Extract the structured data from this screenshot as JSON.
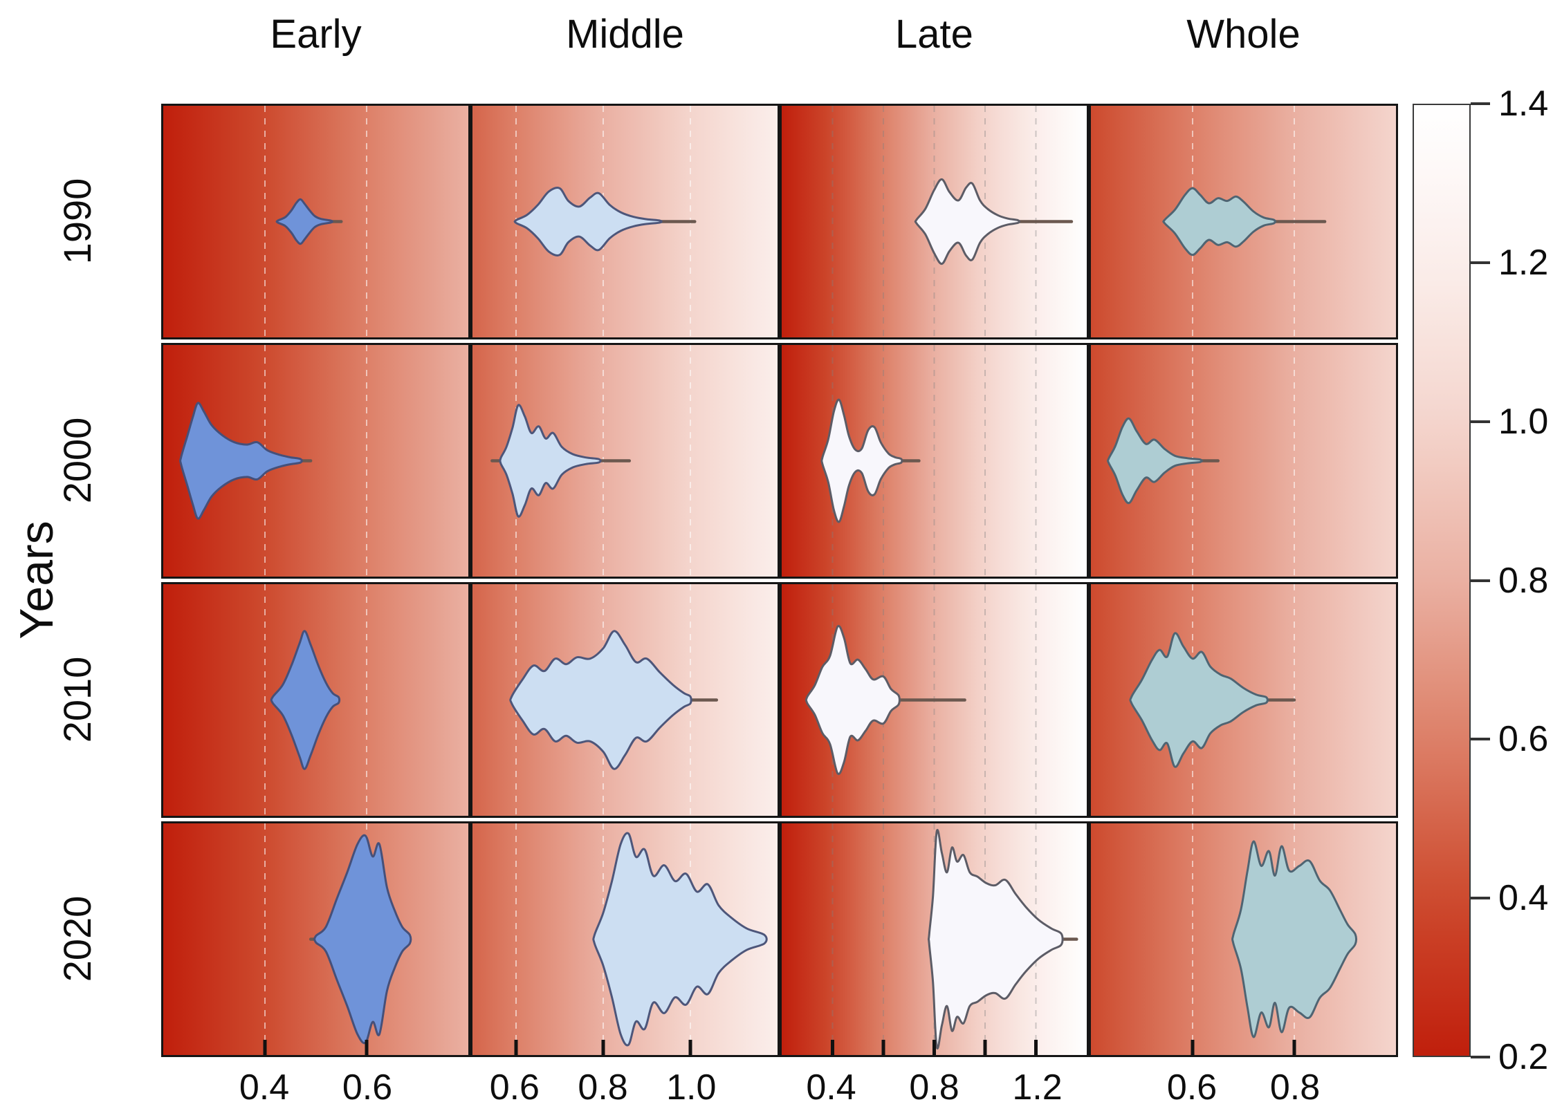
{
  "colors": {
    "background": "#ffffff",
    "panel_border": "#151515",
    "axis_text": "#111111",
    "tail_line": "#6b584f",
    "colorbar_border": "#3a3a3a"
  },
  "chart_data": {
    "type": "violin",
    "title": "",
    "xlabel": "",
    "ylabel": "Years",
    "rows": [
      "1990",
      "2000",
      "2010",
      "2020"
    ],
    "colormap": {
      "values": [
        0.2,
        0.4,
        0.6,
        0.8,
        1.0,
        1.2,
        1.4
      ],
      "colors": [
        "#c01f0c",
        "#cd4a2e",
        "#dd8068",
        "#eab0a2",
        "#f4d5cd",
        "#fbeeeb",
        "#ffffff"
      ]
    },
    "colorbar": {
      "min": 0.2,
      "max": 1.4,
      "ticks": [
        1.4,
        1.2,
        1.0,
        0.8,
        0.6,
        0.4,
        0.2
      ],
      "tick_labels": [
        "1.4",
        "1.2",
        "1.0",
        "0.8",
        "0.6",
        "0.4",
        "0.2"
      ],
      "position": "right"
    },
    "columns": [
      {
        "name": "Early",
        "x_range": [
          0.2,
          0.8
        ],
        "ticks": [
          0.4,
          0.6
        ],
        "tick_labels": [
          "0.4",
          "0.6"
        ],
        "violin_fill": "#6f93d9",
        "violin_stroke": "#45507a",
        "gridline_color": "rgba(255,255,255,0.55)"
      },
      {
        "name": "Middle",
        "x_range": [
          0.5,
          1.2
        ],
        "ticks": [
          0.6,
          0.8,
          1.0
        ],
        "tick_labels": [
          "0.6",
          "0.8",
          "1.0"
        ],
        "violin_fill": "#ccdef2",
        "violin_stroke": "#4d567a",
        "gridline_color": "rgba(255,255,255,0.55)"
      },
      {
        "name": "Late",
        "x_range": [
          0.2,
          1.4
        ],
        "ticks": [
          0.4,
          0.6,
          0.8,
          1.0,
          1.2
        ],
        "tick_labels": [
          "0.4",
          "",
          "0.8",
          "",
          "1.2"
        ],
        "violin_fill": "#f8f7fc",
        "violin_stroke": "#5c5c66",
        "gridline_color": "rgba(130,130,130,0.38)"
      },
      {
        "name": "Whole",
        "x_range": [
          0.4,
          1.0
        ],
        "ticks": [
          0.6,
          0.8
        ],
        "tick_labels": [
          "0.6",
          "0.8"
        ],
        "violin_fill": "#aecdd3",
        "violin_stroke": "#4f6472",
        "gridline_color": "rgba(255,255,255,0.55)"
      }
    ],
    "violins": [
      {
        "row": "1990",
        "col": "Early",
        "height_frac": 0.2,
        "tails": [
          [
            0.505,
            0.55
          ]
        ],
        "profile": [
          [
            0.425,
            0.04
          ],
          [
            0.44,
            0.2
          ],
          [
            0.452,
            0.5
          ],
          [
            0.462,
            0.85
          ],
          [
            0.47,
            1.0
          ],
          [
            0.478,
            0.8
          ],
          [
            0.488,
            0.5
          ],
          [
            0.498,
            0.25
          ],
          [
            0.51,
            0.12
          ],
          [
            0.53,
            0.04
          ]
        ]
      },
      {
        "row": "1990",
        "col": "Middle",
        "height_frac": 0.3,
        "tails": [
          [
            0.9,
            1.01
          ]
        ],
        "profile": [
          [
            0.6,
            0.04
          ],
          [
            0.625,
            0.2
          ],
          [
            0.65,
            0.5
          ],
          [
            0.675,
            0.9
          ],
          [
            0.7,
            1.0
          ],
          [
            0.72,
            0.62
          ],
          [
            0.745,
            0.45
          ],
          [
            0.77,
            0.72
          ],
          [
            0.79,
            0.85
          ],
          [
            0.815,
            0.5
          ],
          [
            0.84,
            0.28
          ],
          [
            0.87,
            0.14
          ],
          [
            0.9,
            0.07
          ],
          [
            0.93,
            0.03
          ]
        ]
      },
      {
        "row": "1990",
        "col": "Late",
        "height_frac": 0.38,
        "tails": [
          [
            1.1,
            1.34
          ]
        ],
        "profile": [
          [
            0.73,
            0.04
          ],
          [
            0.765,
            0.3
          ],
          [
            0.8,
            0.75
          ],
          [
            0.83,
            1.0
          ],
          [
            0.86,
            0.7
          ],
          [
            0.895,
            0.5
          ],
          [
            0.925,
            0.8
          ],
          [
            0.95,
            0.9
          ],
          [
            0.98,
            0.5
          ],
          [
            1.01,
            0.3
          ],
          [
            1.05,
            0.15
          ],
          [
            1.09,
            0.07
          ],
          [
            1.13,
            0.03
          ]
        ]
      },
      {
        "row": "1990",
        "col": "Whole",
        "height_frac": 0.3,
        "tails": [
          [
            0.74,
            0.86
          ]
        ],
        "profile": [
          [
            0.545,
            0.05
          ],
          [
            0.565,
            0.35
          ],
          [
            0.585,
            0.8
          ],
          [
            0.6,
            1.0
          ],
          [
            0.615,
            0.8
          ],
          [
            0.632,
            0.55
          ],
          [
            0.65,
            0.7
          ],
          [
            0.668,
            0.62
          ],
          [
            0.685,
            0.75
          ],
          [
            0.7,
            0.6
          ],
          [
            0.72,
            0.3
          ],
          [
            0.74,
            0.12
          ],
          [
            0.76,
            0.05
          ]
        ]
      },
      {
        "row": "2000",
        "col": "Early",
        "height_frac": 0.52,
        "tails": [
          [
            0.42,
            0.49
          ]
        ],
        "profile": [
          [
            0.235,
            0.06
          ],
          [
            0.248,
            0.45
          ],
          [
            0.258,
            0.75
          ],
          [
            0.268,
            1.0
          ],
          [
            0.28,
            0.85
          ],
          [
            0.295,
            0.62
          ],
          [
            0.315,
            0.45
          ],
          [
            0.34,
            0.32
          ],
          [
            0.365,
            0.28
          ],
          [
            0.385,
            0.32
          ],
          [
            0.405,
            0.18
          ],
          [
            0.43,
            0.1
          ],
          [
            0.45,
            0.06
          ],
          [
            0.47,
            0.03
          ]
        ]
      },
      {
        "row": "2000",
        "col": "Middle",
        "height_frac": 0.5,
        "tails": [
          [
            0.545,
            0.565
          ],
          [
            0.76,
            0.86
          ]
        ],
        "profile": [
          [
            0.565,
            0.05
          ],
          [
            0.578,
            0.25
          ],
          [
            0.592,
            0.6
          ],
          [
            0.605,
            1.0
          ],
          [
            0.62,
            0.8
          ],
          [
            0.635,
            0.5
          ],
          [
            0.652,
            0.62
          ],
          [
            0.668,
            0.4
          ],
          [
            0.685,
            0.5
          ],
          [
            0.705,
            0.25
          ],
          [
            0.73,
            0.12
          ],
          [
            0.76,
            0.06
          ],
          [
            0.79,
            0.03
          ]
        ]
      },
      {
        "row": "2000",
        "col": "Late",
        "height_frac": 0.55,
        "tails": [
          [
            0.63,
            0.74
          ]
        ],
        "profile": [
          [
            0.36,
            0.05
          ],
          [
            0.383,
            0.35
          ],
          [
            0.405,
            0.8
          ],
          [
            0.425,
            1.0
          ],
          [
            0.445,
            0.75
          ],
          [
            0.465,
            0.4
          ],
          [
            0.49,
            0.18
          ],
          [
            0.515,
            0.2
          ],
          [
            0.54,
            0.5
          ],
          [
            0.565,
            0.55
          ],
          [
            0.59,
            0.3
          ],
          [
            0.62,
            0.12
          ],
          [
            0.645,
            0.06
          ],
          [
            0.67,
            0.03
          ]
        ]
      },
      {
        "row": "2000",
        "col": "Whole",
        "height_frac": 0.38,
        "tails": [
          [
            0.57,
            0.65
          ]
        ],
        "profile": [
          [
            0.435,
            0.05
          ],
          [
            0.448,
            0.35
          ],
          [
            0.462,
            0.8
          ],
          [
            0.475,
            1.0
          ],
          [
            0.49,
            0.7
          ],
          [
            0.508,
            0.4
          ],
          [
            0.525,
            0.5
          ],
          [
            0.545,
            0.28
          ],
          [
            0.565,
            0.12
          ],
          [
            0.59,
            0.06
          ],
          [
            0.615,
            0.03
          ]
        ]
      },
      {
        "row": "2010",
        "col": "Early",
        "height_frac": 0.62,
        "tails": [],
        "profile": [
          [
            0.415,
            0.04
          ],
          [
            0.435,
            0.22
          ],
          [
            0.452,
            0.5
          ],
          [
            0.468,
            0.82
          ],
          [
            0.478,
            1.0
          ],
          [
            0.49,
            0.8
          ],
          [
            0.505,
            0.5
          ],
          [
            0.52,
            0.25
          ],
          [
            0.533,
            0.1
          ],
          [
            0.545,
            0.04
          ]
        ]
      },
      {
        "row": "2010",
        "col": "Middle",
        "height_frac": 0.62,
        "tails": [
          [
            1.0,
            1.06
          ]
        ],
        "profile": [
          [
            0.59,
            0.05
          ],
          [
            0.615,
            0.3
          ],
          [
            0.64,
            0.5
          ],
          [
            0.665,
            0.42
          ],
          [
            0.69,
            0.6
          ],
          [
            0.715,
            0.52
          ],
          [
            0.74,
            0.62
          ],
          [
            0.77,
            0.6
          ],
          [
            0.8,
            0.75
          ],
          [
            0.825,
            1.0
          ],
          [
            0.85,
            0.8
          ],
          [
            0.875,
            0.55
          ],
          [
            0.9,
            0.6
          ],
          [
            0.93,
            0.4
          ],
          [
            0.96,
            0.22
          ],
          [
            0.985,
            0.1
          ],
          [
            1.0,
            0.05
          ]
        ]
      },
      {
        "row": "2010",
        "col": "Late",
        "height_frac": 0.66,
        "tails": [
          [
            0.66,
            0.92
          ]
        ],
        "profile": [
          [
            0.3,
            0.04
          ],
          [
            0.33,
            0.2
          ],
          [
            0.36,
            0.45
          ],
          [
            0.39,
            0.6
          ],
          [
            0.42,
            1.0
          ],
          [
            0.445,
            0.85
          ],
          [
            0.47,
            0.5
          ],
          [
            0.5,
            0.55
          ],
          [
            0.53,
            0.42
          ],
          [
            0.56,
            0.28
          ],
          [
            0.6,
            0.32
          ],
          [
            0.63,
            0.15
          ],
          [
            0.66,
            0.06
          ]
        ]
      },
      {
        "row": "2010",
        "col": "Whole",
        "height_frac": 0.6,
        "tails": [
          [
            0.745,
            0.8
          ]
        ],
        "profile": [
          [
            0.48,
            0.05
          ],
          [
            0.5,
            0.3
          ],
          [
            0.52,
            0.6
          ],
          [
            0.535,
            0.75
          ],
          [
            0.55,
            0.65
          ],
          [
            0.565,
            1.0
          ],
          [
            0.582,
            0.8
          ],
          [
            0.6,
            0.62
          ],
          [
            0.618,
            0.72
          ],
          [
            0.635,
            0.5
          ],
          [
            0.655,
            0.38
          ],
          [
            0.675,
            0.32
          ],
          [
            0.7,
            0.18
          ],
          [
            0.725,
            0.08
          ],
          [
            0.745,
            0.04
          ]
        ]
      },
      {
        "row": "2020",
        "col": "Early",
        "height_frac": 0.93,
        "tails": [
          [
            0.49,
            0.505
          ]
        ],
        "profile": [
          [
            0.5,
            0.03
          ],
          [
            0.52,
            0.12
          ],
          [
            0.542,
            0.4
          ],
          [
            0.562,
            0.65
          ],
          [
            0.582,
            0.92
          ],
          [
            0.598,
            1.0
          ],
          [
            0.612,
            0.8
          ],
          [
            0.625,
            0.92
          ],
          [
            0.64,
            0.5
          ],
          [
            0.655,
            0.28
          ],
          [
            0.67,
            0.12
          ],
          [
            0.685,
            0.04
          ]
        ]
      },
      {
        "row": "2020",
        "col": "Middle",
        "height_frac": 0.95,
        "tails": [],
        "profile": [
          [
            0.78,
            0.04
          ],
          [
            0.8,
            0.25
          ],
          [
            0.82,
            0.55
          ],
          [
            0.84,
            0.9
          ],
          [
            0.858,
            1.0
          ],
          [
            0.875,
            0.78
          ],
          [
            0.895,
            0.85
          ],
          [
            0.915,
            0.6
          ],
          [
            0.94,
            0.7
          ],
          [
            0.965,
            0.55
          ],
          [
            0.99,
            0.62
          ],
          [
            1.015,
            0.45
          ],
          [
            1.04,
            0.52
          ],
          [
            1.065,
            0.32
          ],
          [
            1.095,
            0.2
          ],
          [
            1.13,
            0.1
          ],
          [
            1.17,
            0.04
          ]
        ]
      },
      {
        "row": "2020",
        "col": "Late",
        "height_frac": 0.97,
        "tails": [
          [
            1.3,
            1.36
          ]
        ],
        "profile": [
          [
            0.78,
            0.04
          ],
          [
            0.795,
            0.4
          ],
          [
            0.81,
            1.0
          ],
          [
            0.83,
            0.8
          ],
          [
            0.85,
            0.62
          ],
          [
            0.87,
            0.85
          ],
          [
            0.89,
            0.72
          ],
          [
            0.915,
            0.78
          ],
          [
            0.94,
            0.62
          ],
          [
            0.97,
            0.58
          ],
          [
            1.005,
            0.52
          ],
          [
            1.04,
            0.5
          ],
          [
            1.08,
            0.55
          ],
          [
            1.12,
            0.42
          ],
          [
            1.16,
            0.3
          ],
          [
            1.21,
            0.18
          ],
          [
            1.26,
            0.1
          ],
          [
            1.3,
            0.05
          ]
        ]
      },
      {
        "row": "2020",
        "col": "Whole",
        "height_frac": 0.88,
        "tails": [],
        "profile": [
          [
            0.68,
            0.04
          ],
          [
            0.695,
            0.3
          ],
          [
            0.708,
            0.7
          ],
          [
            0.72,
            1.0
          ],
          [
            0.735,
            0.75
          ],
          [
            0.75,
            0.9
          ],
          [
            0.762,
            0.65
          ],
          [
            0.775,
            0.95
          ],
          [
            0.79,
            0.7
          ],
          [
            0.81,
            0.75
          ],
          [
            0.83,
            0.8
          ],
          [
            0.85,
            0.6
          ],
          [
            0.87,
            0.5
          ],
          [
            0.89,
            0.3
          ],
          [
            0.905,
            0.15
          ],
          [
            0.92,
            0.05
          ]
        ]
      }
    ]
  }
}
